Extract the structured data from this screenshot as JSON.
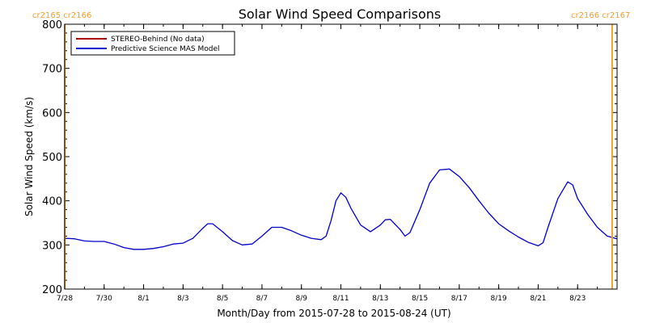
{
  "chart_data": {
    "type": "line",
    "title": "Solar Wind Speed Comparisons",
    "xlabel": "Month/Day from 2015-07-28 to 2015-08-24 (UT)",
    "ylabel": "Solar Wind Speed (km/s)",
    "ylim": [
      200,
      800
    ],
    "xlim": [
      "2015-07-28",
      "2015-08-25"
    ],
    "y_ticks": [
      200,
      300,
      400,
      500,
      600,
      700,
      800
    ],
    "x_ticks": [
      {
        "date": "2015-07-28",
        "label": "7/28"
      },
      {
        "date": "2015-07-30",
        "label": "7/30"
      },
      {
        "date": "2015-08-01",
        "label": "8/1"
      },
      {
        "date": "2015-08-03",
        "label": "8/3"
      },
      {
        "date": "2015-08-05",
        "label": "8/5"
      },
      {
        "date": "2015-08-07",
        "label": "8/7"
      },
      {
        "date": "2015-08-09",
        "label": "8/9"
      },
      {
        "date": "2015-08-11",
        "label": "8/11"
      },
      {
        "date": "2015-08-13",
        "label": "8/13"
      },
      {
        "date": "2015-08-15",
        "label": "8/15"
      },
      {
        "date": "2015-08-17",
        "label": "8/17"
      },
      {
        "date": "2015-08-19",
        "label": "8/19"
      },
      {
        "date": "2015-08-21",
        "label": "8/21"
      },
      {
        "date": "2015-08-23",
        "label": "8/23"
      }
    ],
    "legend": {
      "placement": "top-left"
    },
    "series": [
      {
        "name": "STEREO-Behind (No data)",
        "color": "#aa0000",
        "points": []
      },
      {
        "name": "Predictive Science MAS Model",
        "color": "#0000cc",
        "points": [
          [
            "2015-07-28T00:00",
            315
          ],
          [
            "2015-07-28T12:00",
            314
          ],
          [
            "2015-07-29T00:00",
            309
          ],
          [
            "2015-07-29T12:00",
            308
          ],
          [
            "2015-07-30T00:00",
            308
          ],
          [
            "2015-07-30T12:00",
            302
          ],
          [
            "2015-07-31T00:00",
            294
          ],
          [
            "2015-07-31T12:00",
            290
          ],
          [
            "2015-08-01T00:00",
            290
          ],
          [
            "2015-08-01T12:00",
            292
          ],
          [
            "2015-08-02T00:00",
            296
          ],
          [
            "2015-08-02T12:00",
            302
          ],
          [
            "2015-08-03T00:00",
            304
          ],
          [
            "2015-08-03T12:00",
            315
          ],
          [
            "2015-08-04T00:00",
            338
          ],
          [
            "2015-08-04T06:00",
            348
          ],
          [
            "2015-08-04T12:00",
            348
          ],
          [
            "2015-08-05T00:00",
            330
          ],
          [
            "2015-08-05T12:00",
            310
          ],
          [
            "2015-08-06T00:00",
            300
          ],
          [
            "2015-08-06T12:00",
            302
          ],
          [
            "2015-08-07T00:00",
            320
          ],
          [
            "2015-08-07T12:00",
            340
          ],
          [
            "2015-08-08T00:00",
            340
          ],
          [
            "2015-08-08T12:00",
            332
          ],
          [
            "2015-08-09T00:00",
            322
          ],
          [
            "2015-08-09T12:00",
            315
          ],
          [
            "2015-08-10T00:00",
            312
          ],
          [
            "2015-08-10T06:00",
            320
          ],
          [
            "2015-08-10T12:00",
            355
          ],
          [
            "2015-08-10T18:00",
            400
          ],
          [
            "2015-08-11T00:00",
            418
          ],
          [
            "2015-08-11T06:00",
            408
          ],
          [
            "2015-08-11T12:00",
            384
          ],
          [
            "2015-08-12T00:00",
            345
          ],
          [
            "2015-08-12T12:00",
            330
          ],
          [
            "2015-08-13T00:00",
            345
          ],
          [
            "2015-08-13T06:00",
            357
          ],
          [
            "2015-08-13T12:00",
            358
          ],
          [
            "2015-08-14T00:00",
            335
          ],
          [
            "2015-08-14T06:00",
            320
          ],
          [
            "2015-08-14T12:00",
            328
          ],
          [
            "2015-08-15T00:00",
            380
          ],
          [
            "2015-08-15T12:00",
            440
          ],
          [
            "2015-08-16T00:00",
            470
          ],
          [
            "2015-08-16T12:00",
            472
          ],
          [
            "2015-08-17T00:00",
            455
          ],
          [
            "2015-08-17T12:00",
            430
          ],
          [
            "2015-08-18T00:00",
            400
          ],
          [
            "2015-08-18T12:00",
            372
          ],
          [
            "2015-08-19T00:00",
            348
          ],
          [
            "2015-08-19T12:00",
            332
          ],
          [
            "2015-08-20T00:00",
            318
          ],
          [
            "2015-08-20T12:00",
            306
          ],
          [
            "2015-08-21T00:00",
            298
          ],
          [
            "2015-08-21T06:00",
            305
          ],
          [
            "2015-08-21T12:00",
            340
          ],
          [
            "2015-08-22T00:00",
            405
          ],
          [
            "2015-08-22T12:00",
            443
          ],
          [
            "2015-08-22T18:00",
            436
          ],
          [
            "2015-08-23T00:00",
            405
          ],
          [
            "2015-08-23T12:00",
            370
          ],
          [
            "2015-08-24T00:00",
            340
          ],
          [
            "2015-08-24T12:00",
            320
          ],
          [
            "2015-08-25T00:00",
            314
          ]
        ]
      }
    ],
    "markers": {
      "color": "#f0a030",
      "lines": [
        "2015-07-28",
        "2015-08-24T18:00"
      ],
      "left_labels": [
        "cr2165",
        "cr2166"
      ],
      "right_labels": [
        "cr2166",
        "cr2167"
      ]
    }
  }
}
